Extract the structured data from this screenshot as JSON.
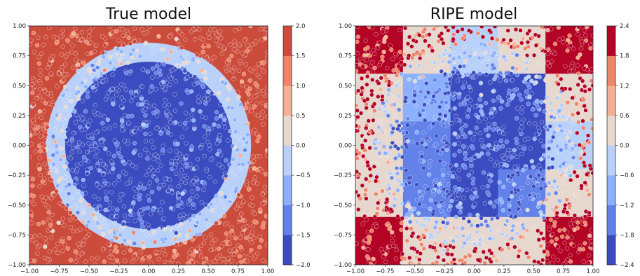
{
  "chart_data": [
    {
      "type": "heatmap",
      "title": "True model",
      "xlabel": "",
      "ylabel": "",
      "xlim": [
        -1.0,
        1.0
      ],
      "ylim": [
        -1.0,
        1.0
      ],
      "xticks": [
        "-1.00",
        "-0.75",
        "-0.50",
        "-0.25",
        "0.00",
        "0.25",
        "0.50",
        "0.75",
        "1.00"
      ],
      "yticks": [
        "1.00",
        "0.75",
        "0.50",
        "0.25",
        "0.00",
        "-0.25",
        "-0.50",
        "-0.75",
        "-1.00"
      ],
      "colorbar": {
        "levels": [
          -2.0,
          -1.5,
          -1.0,
          -0.5,
          0.0,
          0.5,
          1.0,
          1.5,
          2.0
        ],
        "ticks": [
          "2.0",
          "1.5",
          "1.0",
          "0.5",
          "0.0",
          "-0.5",
          "-1.0",
          "-1.5",
          "-2.0"
        ],
        "colors": [
          "#3b4cc0",
          "#6282ea",
          "#8db0fe",
          "#b9d0f9",
          "#e6d7cf",
          "#f5b093",
          "#ee8468",
          "#cc4c3c"
        ]
      },
      "regions": [
        {
          "shape": "square-background",
          "value": 1.75
        },
        {
          "shape": "circle",
          "center": [
            0.0,
            0.0
          ],
          "radius": 0.86,
          "value": -0.25
        },
        {
          "shape": "circle",
          "center": [
            0.0,
            0.0
          ],
          "radius": 0.7,
          "value": -1.75
        }
      ],
      "scatter": "noisy samples of the same function"
    },
    {
      "type": "heatmap",
      "title": "RIPE model",
      "xlabel": "",
      "ylabel": "",
      "xlim": [
        -1.0,
        1.0
      ],
      "ylim": [
        -1.0,
        1.0
      ],
      "xticks": [
        "-1.00",
        "-0.75",
        "-0.50",
        "-0.25",
        "0.00",
        "0.25",
        "0.50",
        "0.75",
        "1.00"
      ],
      "yticks": [
        "1.00",
        "0.75",
        "0.50",
        "0.25",
        "0.00",
        "-0.25",
        "-0.50",
        "-0.75",
        "-1.00"
      ],
      "colorbar": {
        "levels": [
          -2.4,
          -1.8,
          -1.2,
          -0.6,
          0.0,
          0.6,
          1.2,
          1.8,
          2.4
        ],
        "ticks": [
          "2.4",
          "1.8",
          "1.2",
          "0.6",
          "0.0",
          "-0.6",
          "-1.2",
          "-1.8",
          "-2.4"
        ],
        "colors": [
          "#3b4cc0",
          "#6282ea",
          "#8db0fe",
          "#b9d0f9",
          "#e6d7cf",
          "#f5b093",
          "#ee8468",
          "#b40426"
        ]
      },
      "grid_edges": [
        -1.0,
        -0.6,
        -0.2,
        0.2,
        0.6,
        1.0
      ],
      "grid_values": [
        [
          2.1,
          0.3,
          -0.3,
          0.3,
          2.1
        ],
        [
          0.3,
          -0.9,
          -2.1,
          -2.1,
          0.3
        ],
        [
          0.3,
          -1.5,
          -2.1,
          -2.1,
          -0.3
        ],
        [
          0.3,
          -1.5,
          -2.1,
          -1.5,
          0.3
        ],
        [
          2.1,
          0.3,
          0.3,
          0.3,
          2.1
        ]
      ],
      "scatter": "noisy samples of the true function"
    }
  ]
}
